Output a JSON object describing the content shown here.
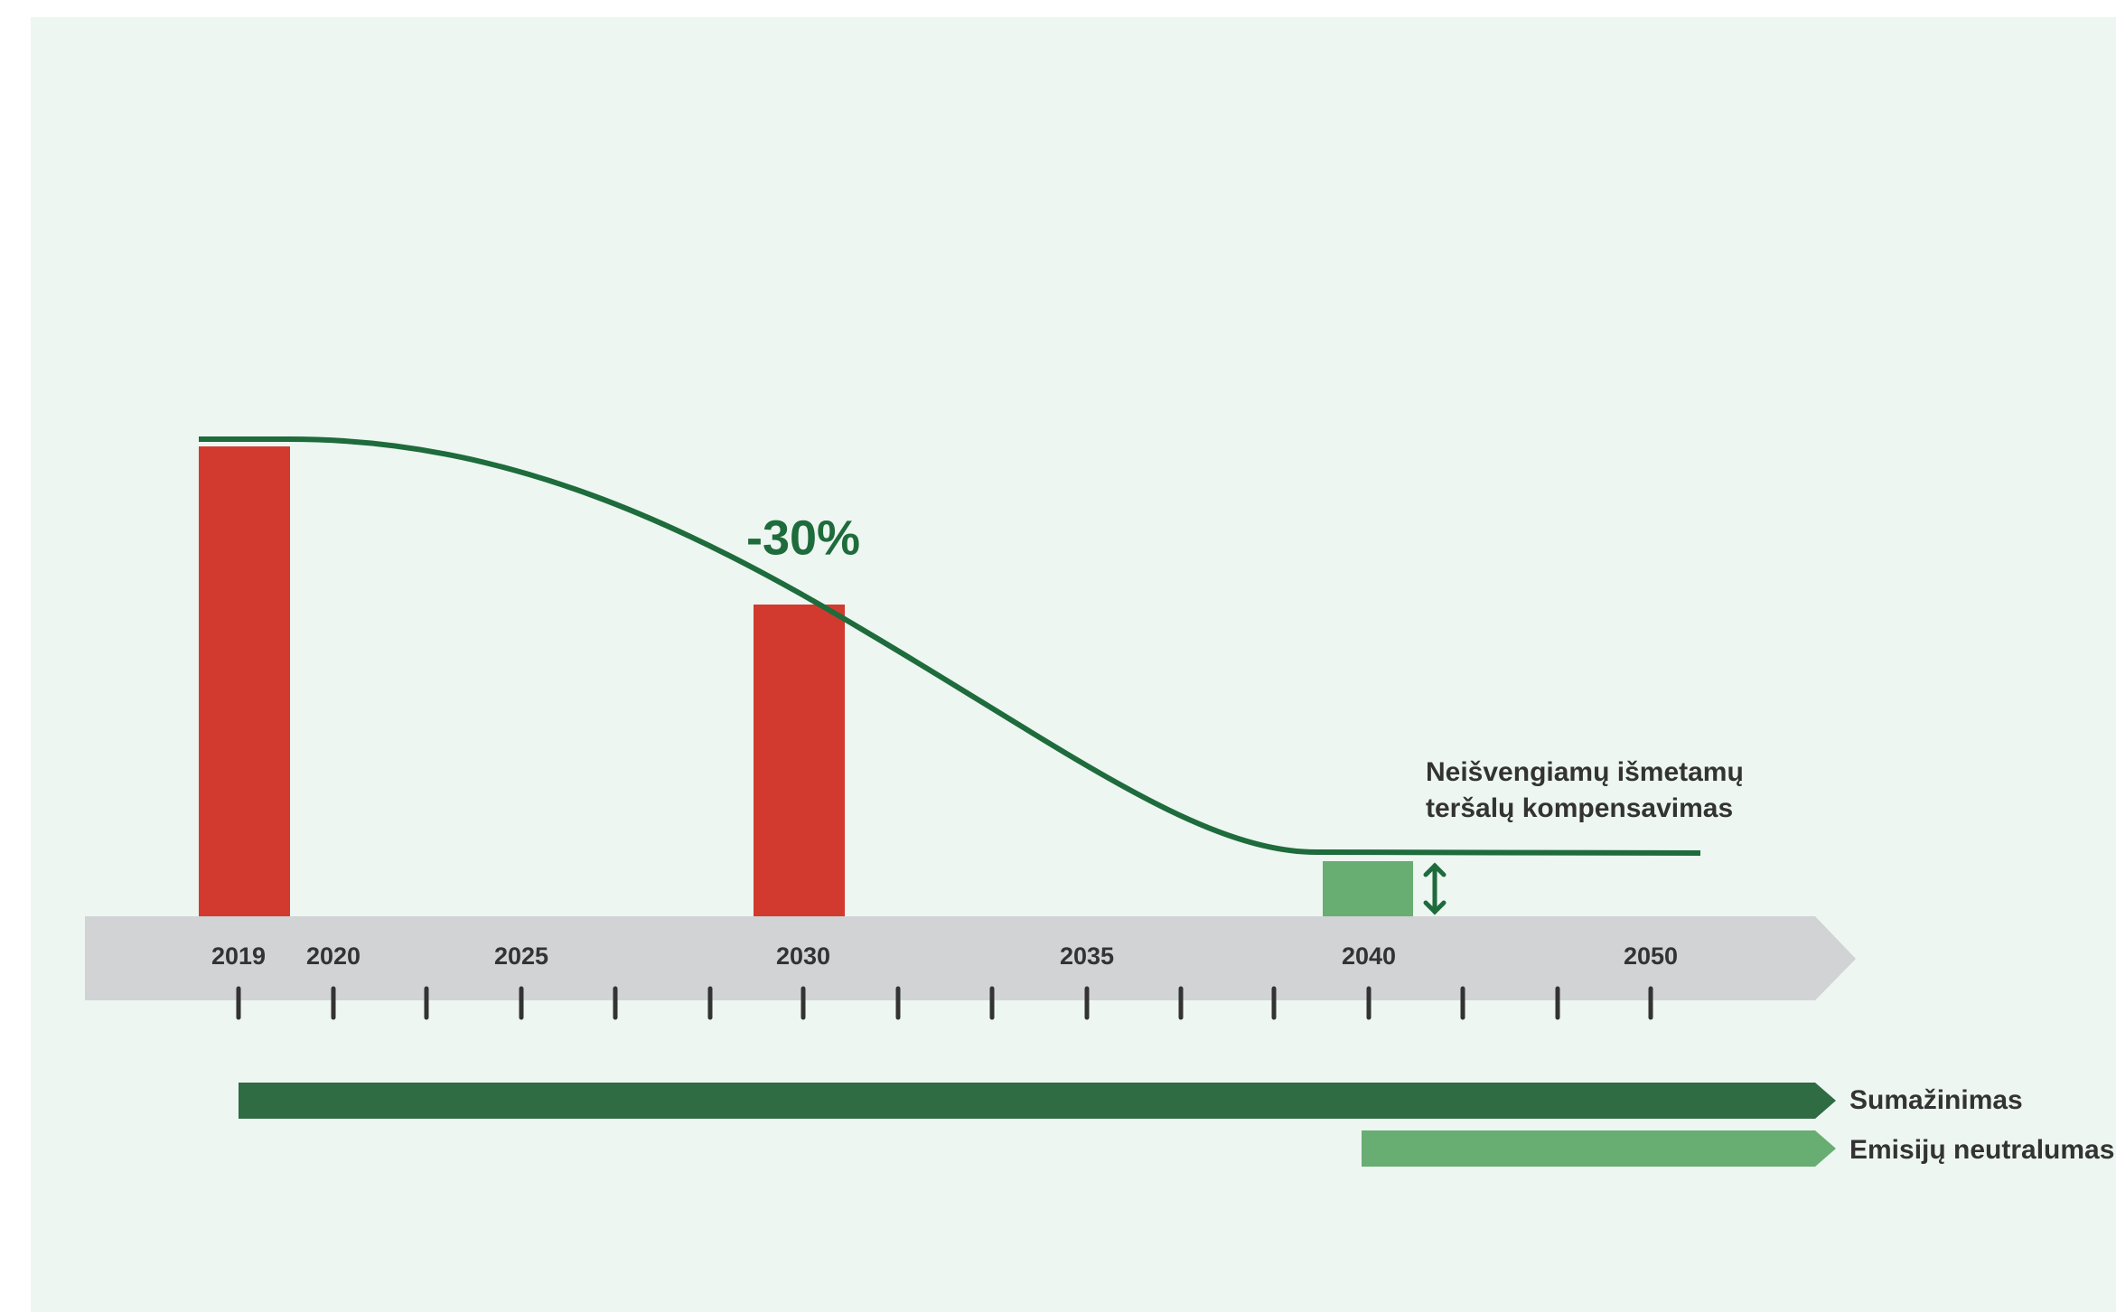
{
  "timeline": {
    "labels": [
      "2019",
      "2020",
      "2025",
      "2030",
      "2035",
      "2040",
      "2050"
    ]
  },
  "annotation": "-30%",
  "note": [
    "Neišvengiamų išmetamų",
    "teršalų kompensavimas"
  ],
  "legend": [
    "Sumažinimas",
    "Emisijų neutralumas"
  ]
}
